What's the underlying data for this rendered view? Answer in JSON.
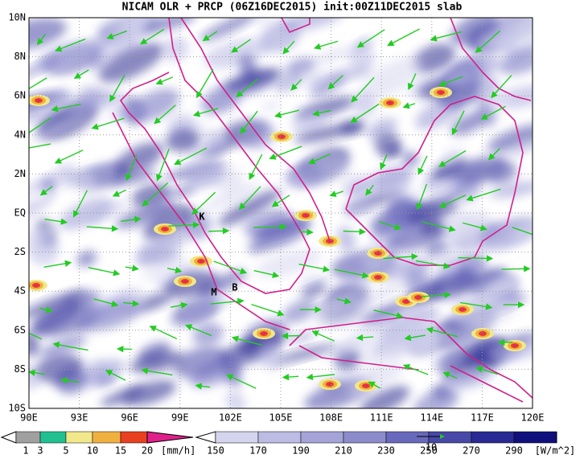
{
  "title": "NICAM OLR + PRCP (06Z16DEC2015) init:00Z11DEC2015 slab",
  "map": {
    "lat_labels": [
      "10N",
      "8N",
      "6N",
      "4N",
      "2N",
      "EQ",
      "2S",
      "4S",
      "6S",
      "8S",
      "10S"
    ],
    "lon_labels": [
      "90E",
      "93E",
      "96E",
      "99E",
      "102E",
      "105E",
      "108E",
      "111E",
      "114E",
      "117E",
      "120E"
    ],
    "markers": [
      "K",
      "M",
      "B"
    ]
  },
  "legend_precip": {
    "ticks": [
      1,
      3,
      5,
      10,
      15,
      20
    ],
    "unit": "[mm/h]"
  },
  "legend_olr": {
    "ticks": [
      150,
      170,
      190,
      210,
      230,
      250,
      270,
      290
    ],
    "unit": "[W/m^2]"
  },
  "vector_reference": "10"
}
